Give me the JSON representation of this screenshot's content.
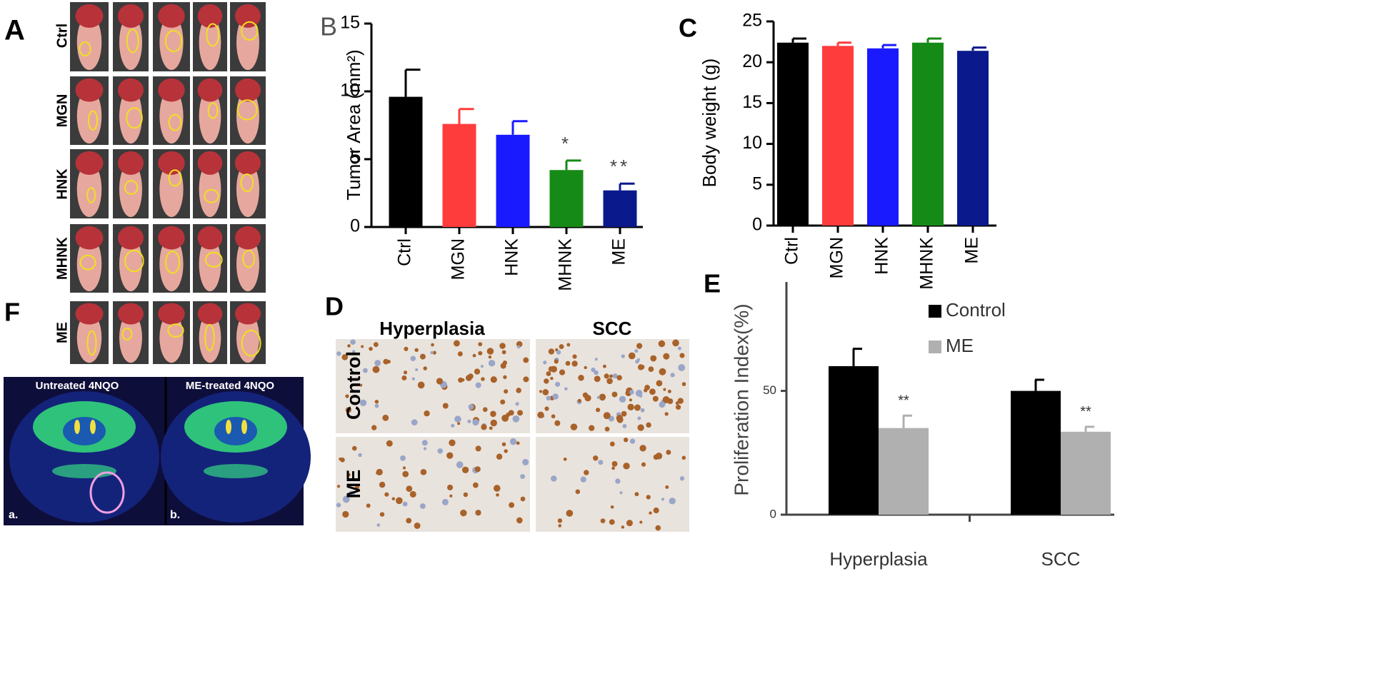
{
  "figure": {
    "panel_a": {
      "label": "A",
      "rows": [
        "Ctrl",
        "MGN",
        "HNK",
        "MHNK",
        "ME"
      ]
    },
    "panel_d": {
      "label": "D",
      "columns": [
        "Hyperplasia",
        "SCC"
      ],
      "rows": [
        "Control",
        "ME"
      ]
    },
    "panel_f": {
      "label": "F",
      "images": [
        {
          "title": "Untreated 4NQO",
          "tag": "a."
        },
        {
          "title": "ME-treated 4NQO",
          "tag": "b."
        }
      ]
    }
  },
  "chart_data": [
    {
      "type": "bar",
      "panel": "B",
      "ylabel": "Tumor  Area (mm²)",
      "categories": [
        "Ctrl",
        "MGN",
        "HNK",
        "MHNK",
        "ME"
      ],
      "values": [
        9.6,
        7.6,
        6.8,
        4.2,
        2.7
      ],
      "errors": [
        2.0,
        1.1,
        1.0,
        0.7,
        0.5
      ],
      "annotations": [
        null,
        null,
        null,
        "*",
        "**"
      ],
      "colors": [
        "#000000",
        "#ff3c3c",
        "#1a1aff",
        "#168a16",
        "#0a1a8c"
      ],
      "ylim": [
        0,
        15
      ],
      "yticks": [
        0,
        5,
        10,
        15
      ]
    },
    {
      "type": "bar",
      "panel": "C",
      "ylabel": "Body weight (g)",
      "categories": [
        "Ctrl",
        "MGN",
        "HNK",
        "MHNK",
        "ME"
      ],
      "values": [
        22.4,
        22.0,
        21.7,
        22.4,
        21.4
      ],
      "errors": [
        0.5,
        0.4,
        0.4,
        0.5,
        0.4
      ],
      "colors": [
        "#000000",
        "#ff3c3c",
        "#1a1aff",
        "#168a16",
        "#0a1a8c"
      ],
      "ylim": [
        0,
        25
      ],
      "yticks": [
        0,
        5,
        10,
        15,
        20,
        25
      ]
    },
    {
      "type": "grouped_bar",
      "panel": "E",
      "ylabel": "Proliferation Index(%)",
      "categories": [
        "Hyperplasia",
        "SCC"
      ],
      "series": [
        {
          "name": "Control",
          "color": "#000000",
          "values": [
            60,
            50
          ],
          "errors": [
            7,
            4.5
          ]
        },
        {
          "name": "ME",
          "color": "#b0b0b0",
          "values": [
            35,
            33.5
          ],
          "errors": [
            5,
            2
          ],
          "annotations": [
            "**",
            "**"
          ]
        }
      ],
      "ylim": [
        0,
        94
      ],
      "yticks": [
        0,
        50
      ],
      "legend": "top-right"
    }
  ]
}
